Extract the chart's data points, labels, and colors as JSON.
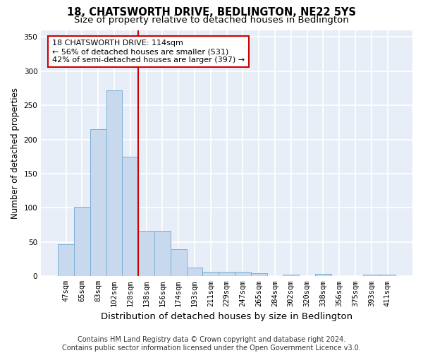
{
  "title": "18, CHATSWORTH DRIVE, BEDLINGTON, NE22 5YS",
  "subtitle": "Size of property relative to detached houses in Bedlington",
  "xlabel": "Distribution of detached houses by size in Bedlington",
  "ylabel": "Number of detached properties",
  "categories": [
    "47sqm",
    "65sqm",
    "83sqm",
    "102sqm",
    "120sqm",
    "138sqm",
    "156sqm",
    "174sqm",
    "193sqm",
    "211sqm",
    "229sqm",
    "247sqm",
    "265sqm",
    "284sqm",
    "302sqm",
    "320sqm",
    "338sqm",
    "356sqm",
    "375sqm",
    "393sqm",
    "411sqm"
  ],
  "values": [
    47,
    101,
    215,
    272,
    175,
    66,
    66,
    40,
    13,
    7,
    7,
    7,
    4,
    0,
    2,
    0,
    3,
    0,
    0,
    2,
    2
  ],
  "bar_color": "#c8d9ee",
  "bar_edge_color": "#7bafd4",
  "vline_color": "#cc0000",
  "vline_index": 4,
  "annotation_line1": "18 CHATSWORTH DRIVE: 114sqm",
  "annotation_line2": "← 56% of detached houses are smaller (531)",
  "annotation_line3": "42% of semi-detached houses are larger (397) →",
  "annotation_box_color": "#ffffff",
  "annotation_box_edge": "#cc0000",
  "bg_color": "#e8eef8",
  "grid_color": "#ffffff",
  "ylim": [
    0,
    360
  ],
  "yticks": [
    0,
    50,
    100,
    150,
    200,
    250,
    300,
    350
  ],
  "footer": "Contains HM Land Registry data © Crown copyright and database right 2024.\nContains public sector information licensed under the Open Government Licence v3.0.",
  "title_fontsize": 10.5,
  "subtitle_fontsize": 9.5,
  "xlabel_fontsize": 9.5,
  "ylabel_fontsize": 8.5,
  "tick_fontsize": 7.5,
  "annotation_fontsize": 8.0,
  "footer_fontsize": 7.0
}
